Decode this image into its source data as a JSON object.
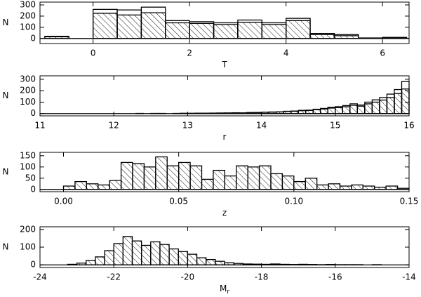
{
  "chart_data": [
    {
      "type": "histogram",
      "xlabel": "T",
      "ylabel": "N",
      "bins": [
        -1.0,
        -0.5,
        0.0,
        0.5,
        1.0,
        1.5,
        2.0,
        2.5,
        3.0,
        3.5,
        4.0,
        4.5,
        5.0,
        5.5,
        6.0,
        6.5
      ],
      "series": [
        {
          "style": "outline",
          "color": "#000000",
          "values": [
            20,
            0,
            260,
            255,
            280,
            160,
            150,
            140,
            165,
            140,
            180,
            45,
            35,
            5,
            10
          ]
        },
        {
          "style": "hatched",
          "color": "#000000",
          "values": [
            15,
            0,
            225,
            210,
            230,
            140,
            135,
            125,
            145,
            125,
            160,
            35,
            25,
            3,
            8
          ]
        }
      ],
      "xlim": [
        -1.1,
        6.55
      ],
      "xticks": [
        0,
        2,
        4,
        6
      ],
      "ylim": [
        -45,
        325
      ],
      "yticks": [
        0,
        100,
        200,
        300
      ]
    },
    {
      "type": "histogram",
      "xlabel": "r",
      "ylabel": "N",
      "bins": [
        12.0,
        12.1,
        12.2,
        12.3,
        12.4,
        12.5,
        12.6,
        12.7,
        12.8,
        12.9,
        13.0,
        13.1,
        13.2,
        13.3,
        13.4,
        13.5,
        13.6,
        13.7,
        13.8,
        13.9,
        14.0,
        14.1,
        14.2,
        14.3,
        14.4,
        14.5,
        14.6,
        14.7,
        14.8,
        14.9,
        15.0,
        15.1,
        15.2,
        15.3,
        15.4,
        15.5,
        15.6,
        15.7,
        15.8,
        15.9,
        16.0
      ],
      "series": [
        {
          "style": "outline",
          "color": "#000000",
          "values": [
            0,
            0,
            0,
            1,
            0,
            1,
            1,
            0,
            1,
            2,
            2,
            3,
            3,
            4,
            5,
            5,
            7,
            6,
            9,
            10,
            12,
            14,
            15,
            20,
            22,
            28,
            30,
            38,
            45,
            55,
            60,
            70,
            85,
            75,
            100,
            120,
            140,
            170,
            210,
            280
          ]
        },
        {
          "style": "hatched",
          "color": "#000000",
          "values": [
            0,
            0,
            0,
            1,
            0,
            1,
            1,
            0,
            1,
            2,
            2,
            3,
            3,
            4,
            4,
            5,
            6,
            5,
            8,
            9,
            11,
            12,
            14,
            18,
            20,
            25,
            27,
            34,
            40,
            48,
            52,
            60,
            72,
            65,
            85,
            100,
            118,
            140,
            175,
            215
          ]
        }
      ],
      "xlim": [
        11,
        16
      ],
      "xticks": [
        11,
        12,
        13,
        14,
        15,
        16
      ],
      "ylim": [
        -20,
        330
      ],
      "yticks": [
        0,
        100,
        200,
        300
      ]
    },
    {
      "type": "histogram",
      "xlabel": "z",
      "ylabel": "N",
      "bins": [
        0.0,
        0.005,
        0.01,
        0.015,
        0.02,
        0.025,
        0.03,
        0.035,
        0.04,
        0.045,
        0.05,
        0.055,
        0.06,
        0.065,
        0.07,
        0.075,
        0.08,
        0.085,
        0.09,
        0.095,
        0.1,
        0.105,
        0.11,
        0.115,
        0.12,
        0.125,
        0.13,
        0.135,
        0.14,
        0.145,
        0.15
      ],
      "series": [
        {
          "style": "hatched",
          "color": "#000000",
          "values": [
            15,
            35,
            25,
            20,
            40,
            120,
            115,
            100,
            145,
            105,
            120,
            105,
            45,
            85,
            60,
            105,
            100,
            105,
            70,
            60,
            35,
            50,
            20,
            25,
            15,
            20,
            15,
            10,
            15,
            5
          ]
        }
      ],
      "xlim": [
        -0.0102,
        0.15
      ],
      "xticks": [
        {
          "value": 0,
          "label": "0.00"
        },
        0.05,
        {
          "value": 0.1,
          "label": "0.10"
        },
        0.15
      ],
      "ylim": [
        -10,
        165
      ],
      "yticks": [
        0,
        50,
        100,
        150
      ]
    },
    {
      "type": "histogram",
      "xlabel": "M",
      "xlabel_subscript": "r",
      "ylabel": "N",
      "bins": [
        -23.5,
        -23.25,
        -23.0,
        -22.75,
        -22.5,
        -22.25,
        -22.0,
        -21.75,
        -21.5,
        -21.25,
        -21.0,
        -20.75,
        -20.5,
        -20.25,
        -20.0,
        -19.75,
        -19.5,
        -19.25,
        -19.0,
        -18.75,
        -18.5,
        -18.25,
        -18.0,
        -17.75,
        -17.5,
        -17.25,
        -17.0,
        -16.75,
        -16.5,
        -16.25,
        -16.0,
        -15.75,
        -15.5,
        -15.25,
        -15.0,
        -14.75,
        -14.5
      ],
      "series": [
        {
          "style": "hatched",
          "color": "#000000",
          "values": [
            0,
            3,
            10,
            25,
            45,
            80,
            120,
            160,
            135,
            110,
            130,
            115,
            90,
            75,
            60,
            40,
            30,
            20,
            12,
            8,
            5,
            4,
            3,
            5,
            3,
            2,
            3,
            2,
            1,
            2,
            1,
            1,
            1,
            0,
            1,
            0
          ]
        }
      ],
      "xlim": [
        -24,
        -14
      ],
      "xticks": [
        -24,
        -22,
        -20,
        -18,
        -16,
        -14
      ],
      "ylim": [
        -15,
        215
      ],
      "yticks": [
        0,
        100,
        200
      ]
    }
  ]
}
